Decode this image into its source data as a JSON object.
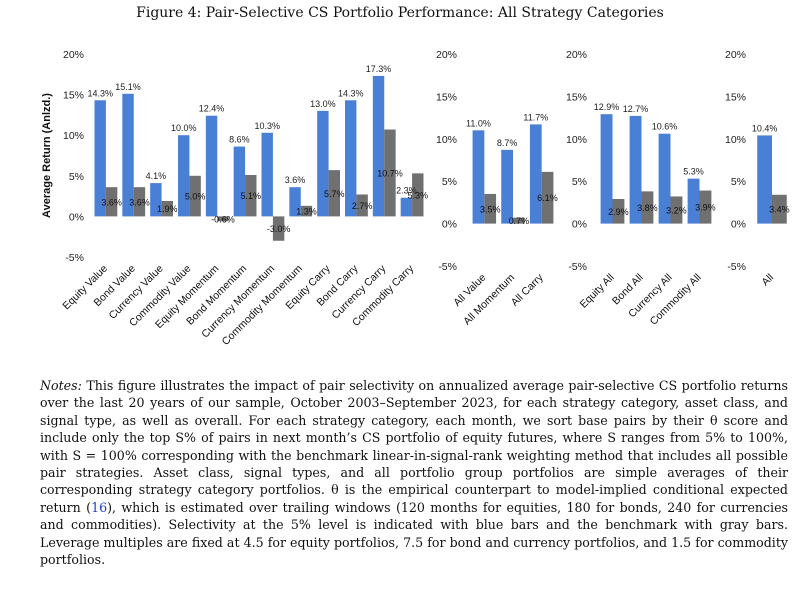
{
  "figure": {
    "title": "Figure 4: Pair-Selective CS Portfolio Performance: All Strategy Categories",
    "notes_lead": "Notes:",
    "notes_part1": "This figure illustrates the impact of pair selectivity on annualized average pair-selective CS portfolio returns over the last 20 years of our sample, October 2003–September 2023, for each strategy category, asset class, and signal type, as well as overall. For each strategy category, each month, we sort base pairs by their θ score and include only the top S% of pairs in next month’s CS portfolio of equity futures, where S ranges from 5% to 100%, with S = 100% corresponding with the benchmark linear-in-signal-rank weighting method that includes all possible pair strategies. Asset class, signal types, and all portfolio group portfolios are simple averages of their corresponding strategy category portfolios. θ is the empirical counterpart to model-implied conditional expected return (",
    "notes_ref": "16",
    "notes_part2": "), which is estimated over trailing windows (120 months for equities, 180 for bonds, 240 for currencies and commodities). Selectivity at the 5% level is indicated with blue bars and the benchmark with gray bars. Leverage multiples are fixed at 4.5 for equity portfolios, 7.5 for bond and currency portfolios, and 1.5 for commodity portfolios."
  },
  "colors": {
    "selective": "#4a7fd6",
    "benchmark": "#707070"
  },
  "chart_data": [
    {
      "type": "bar",
      "ylabel": "Average Return (Anlzd.)",
      "ylim": [
        -5,
        20
      ],
      "yticks": [
        -5,
        0,
        5,
        10,
        15,
        20
      ],
      "categories": [
        "Equity Value",
        "Bond Value",
        "Currency Value",
        "Commodity Value",
        "Equity Momentum",
        "Bond Momentum",
        "Currency Momentum",
        "Commodity Momentum",
        "Equity Carry",
        "Bond Carry",
        "Currency Carry",
        "Commodity Carry"
      ],
      "series": [
        {
          "values": [
            14.3,
            15.1,
            4.1,
            10.0,
            12.4,
            8.6,
            10.3,
            3.6,
            13.0,
            14.3,
            17.3,
            2.3
          ]
        },
        {
          "values": [
            3.6,
            3.6,
            1.9,
            5.0,
            -0.6,
            5.1,
            -3.0,
            1.3,
            5.7,
            2.7,
            10.7,
            5.3
          ]
        }
      ]
    },
    {
      "type": "bar",
      "ylim": [
        -5,
        20
      ],
      "yticks": [
        -5,
        0,
        5,
        10,
        15,
        20
      ],
      "categories": [
        "All Value",
        "All Momentum",
        "All Carry"
      ],
      "series": [
        {
          "values": [
            11.0,
            8.7,
            11.7
          ]
        },
        {
          "values": [
            3.5,
            0.7,
            6.1
          ]
        }
      ]
    },
    {
      "type": "bar",
      "ylim": [
        -5,
        20
      ],
      "yticks": [
        -5,
        0,
        5,
        10,
        15,
        20
      ],
      "categories": [
        "Equity All",
        "Bond All",
        "Currency All",
        "Commodity All"
      ],
      "series": [
        {
          "values": [
            12.9,
            12.7,
            10.6,
            5.3
          ]
        },
        {
          "values": [
            2.9,
            3.8,
            3.2,
            3.9
          ]
        }
      ]
    },
    {
      "type": "bar",
      "ylim": [
        -5,
        20
      ],
      "yticks": [
        -5,
        0,
        5,
        10,
        15,
        20
      ],
      "categories": [
        "All"
      ],
      "series": [
        {
          "values": [
            10.4
          ]
        },
        {
          "values": [
            3.4
          ]
        }
      ]
    }
  ]
}
